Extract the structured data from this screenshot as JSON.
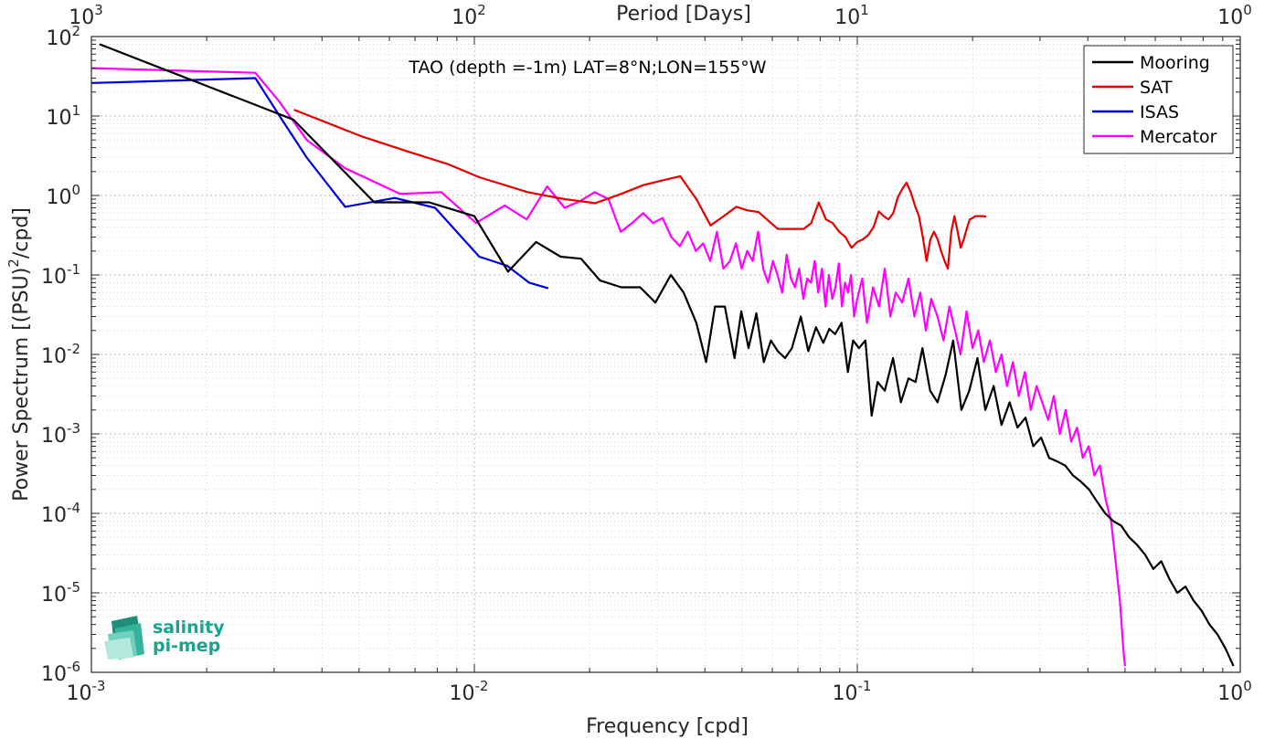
{
  "chart_data": {
    "type": "line",
    "title": "TAO (depth =-1m) LAT=8°N;LON=155°W",
    "xlabel": "Frequency [cpd]",
    "ylabel_main": "Power Spectrum [(PSU)",
    "ylabel_sup": "2",
    "ylabel_tail": "/cpd]",
    "top_xlabel": "Period [Days]",
    "x_scale": "log",
    "y_scale": "log",
    "xlim": [
      0.001,
      1
    ],
    "ylim": [
      1e-06,
      100
    ],
    "grid": true,
    "legend_position": "top-right",
    "x_ticks": [
      {
        "value": 0.001,
        "base": "10",
        "exp": "-3"
      },
      {
        "value": 0.01,
        "base": "10",
        "exp": "-2"
      },
      {
        "value": 0.1,
        "base": "10",
        "exp": "-1"
      },
      {
        "value": 1,
        "base": "10",
        "exp": "0"
      }
    ],
    "top_ticks": [
      {
        "value": 0.001,
        "base": "10",
        "exp": "3"
      },
      {
        "value": 0.01,
        "base": "10",
        "exp": "2"
      },
      {
        "value": 0.1,
        "base": "10",
        "exp": "1"
      },
      {
        "value": 1,
        "base": "10",
        "exp": "0"
      }
    ],
    "y_ticks": [
      {
        "value": 100,
        "base": "10",
        "exp": "2"
      },
      {
        "value": 10,
        "base": "10",
        "exp": "1"
      },
      {
        "value": 1,
        "base": "10",
        "exp": "0"
      },
      {
        "value": 0.1,
        "base": "10",
        "exp": "-1"
      },
      {
        "value": 0.01,
        "base": "10",
        "exp": "-2"
      },
      {
        "value": 0.001,
        "base": "10",
        "exp": "-3"
      },
      {
        "value": 0.0001,
        "base": "10",
        "exp": "-4"
      },
      {
        "value": 1e-05,
        "base": "10",
        "exp": "-5"
      },
      {
        "value": 1e-06,
        "base": "10",
        "exp": "-6"
      }
    ],
    "series": [
      {
        "name": "Mooring",
        "color": "#000000",
        "x": [
          0.00105,
          0.00337,
          0.00548,
          0.00762,
          0.01,
          0.01225,
          0.0145,
          0.0168,
          0.019,
          0.0213,
          0.0242,
          0.0271,
          0.0297,
          0.0326,
          0.0352,
          0.038,
          0.0403,
          0.0425,
          0.0451,
          0.0478,
          0.0498,
          0.052,
          0.0545,
          0.057,
          0.0595,
          0.062,
          0.0648,
          0.0675,
          0.0712,
          0.0745,
          0.078,
          0.0815,
          0.0845,
          0.0875,
          0.091,
          0.0945,
          0.0975,
          0.101,
          0.105,
          0.109,
          0.113,
          0.118,
          0.124,
          0.13,
          0.136,
          0.142,
          0.148,
          0.155,
          0.162,
          0.17,
          0.178,
          0.187,
          0.196,
          0.206,
          0.216,
          0.227,
          0.238,
          0.25,
          0.262,
          0.275,
          0.288,
          0.302,
          0.317,
          0.333,
          0.349,
          0.366,
          0.384,
          0.403,
          0.423,
          0.444,
          0.466,
          0.489,
          0.513,
          0.538,
          0.565,
          0.593,
          0.622,
          0.653,
          0.685,
          0.719,
          0.755,
          0.792,
          0.831,
          0.872,
          0.915,
          0.96
        ],
        "y": [
          80,
          9,
          0.82,
          0.82,
          0.55,
          0.11,
          0.26,
          0.17,
          0.16,
          0.085,
          0.07,
          0.07,
          0.045,
          0.1,
          0.06,
          0.025,
          0.008,
          0.04,
          0.04,
          0.009,
          0.035,
          0.012,
          0.033,
          0.008,
          0.015,
          0.011,
          0.009,
          0.012,
          0.03,
          0.011,
          0.022,
          0.014,
          0.021,
          0.018,
          0.025,
          0.006,
          0.015,
          0.012,
          0.015,
          0.0017,
          0.0045,
          0.0035,
          0.009,
          0.0025,
          0.005,
          0.0045,
          0.012,
          0.0035,
          0.0025,
          0.0055,
          0.015,
          0.002,
          0.0035,
          0.009,
          0.002,
          0.004,
          0.0013,
          0.0025,
          0.0012,
          0.0016,
          0.0007,
          0.0009,
          0.0005,
          0.00045,
          0.0004,
          0.0003,
          0.00025,
          0.0002,
          0.00014,
          0.0001,
          8e-05,
          7e-05,
          5e-05,
          4e-05,
          3e-05,
          2e-05,
          2.5e-05,
          1.5e-05,
          1e-05,
          1.2e-05,
          8e-06,
          6e-06,
          4e-06,
          3e-06,
          2e-06,
          1.2e-06
        ]
      },
      {
        "name": "SAT",
        "color": "#e60000",
        "x": [
          0.00338,
          0.0051,
          0.0068,
          0.0085,
          0.0103,
          0.0138,
          0.0172,
          0.0207,
          0.0242,
          0.0276,
          0.031,
          0.0345,
          0.038,
          0.0414,
          0.0448,
          0.0483,
          0.0517,
          0.0552,
          0.0586,
          0.062,
          0.0655,
          0.069,
          0.0724,
          0.0758,
          0.0793,
          0.0828,
          0.0862,
          0.0897,
          0.0931,
          0.0966,
          0.1,
          0.1034,
          0.1069,
          0.1103,
          0.1138,
          0.1172,
          0.1207,
          0.1241,
          0.1276,
          0.131,
          0.1345,
          0.1379,
          0.1414,
          0.1448,
          0.1483,
          0.1517,
          0.1552,
          0.1586,
          0.1621,
          0.1655,
          0.169,
          0.1724,
          0.1759,
          0.1793,
          0.1828,
          0.1862,
          0.1897,
          0.1931,
          0.1966,
          0.2,
          0.2034,
          0.2069,
          0.2103,
          0.2138,
          0.2172
        ],
        "y": [
          12,
          5.5,
          3.5,
          2.5,
          1.7,
          1.1,
          0.9,
          0.8,
          1.05,
          1.35,
          1.55,
          1.75,
          0.9,
          0.42,
          0.55,
          0.72,
          0.65,
          0.62,
          0.48,
          0.38,
          0.38,
          0.38,
          0.38,
          0.45,
          0.82,
          0.5,
          0.45,
          0.35,
          0.3,
          0.22,
          0.26,
          0.28,
          0.32,
          0.4,
          0.63,
          0.55,
          0.5,
          0.6,
          0.95,
          1.2,
          1.45,
          1.1,
          0.75,
          0.55,
          0.3,
          0.15,
          0.28,
          0.35,
          0.28,
          0.2,
          0.15,
          0.12,
          0.35,
          0.55,
          0.35,
          0.22,
          0.28,
          0.38,
          0.5,
          0.52,
          0.55,
          0.55,
          0.55,
          0.55,
          0.54
        ]
      },
      {
        "name": "ISAS",
        "color": "#0000e6",
        "x": [
          0.001,
          0.00268,
          0.0031,
          0.00365,
          0.0046,
          0.0062,
          0.0079,
          0.0103,
          0.0122,
          0.0139,
          0.0156
        ],
        "y": [
          26,
          30,
          10,
          3,
          0.72,
          0.93,
          0.7,
          0.17,
          0.13,
          0.08,
          0.068
        ]
      },
      {
        "name": "Mercator",
        "color": "#ff00ff",
        "x": [
          0.001,
          0.00268,
          0.0031,
          0.00365,
          0.0046,
          0.0064,
          0.0082,
          0.0101,
          0.012,
          0.0137,
          0.0155,
          0.0172,
          0.0189,
          0.0206,
          0.0224,
          0.0241,
          0.0258,
          0.0276,
          0.0293,
          0.031,
          0.0327,
          0.0344,
          0.0361,
          0.0379,
          0.0396,
          0.0413,
          0.043,
          0.0447,
          0.0465,
          0.0482,
          0.0499,
          0.0516,
          0.0533,
          0.0551,
          0.0568,
          0.0585,
          0.0602,
          0.0619,
          0.0637,
          0.0654,
          0.0671,
          0.0688,
          0.0705,
          0.0723,
          0.074,
          0.0757,
          0.0774,
          0.0791,
          0.0809,
          0.0826,
          0.0843,
          0.086,
          0.0877,
          0.0895,
          0.0912,
          0.0929,
          0.0946,
          0.0963,
          0.0981,
          0.1,
          0.103,
          0.106,
          0.11,
          0.114,
          0.118,
          0.122,
          0.126,
          0.131,
          0.136,
          0.141,
          0.146,
          0.151,
          0.156,
          0.162,
          0.168,
          0.174,
          0.18,
          0.186,
          0.193,
          0.2,
          0.207,
          0.214,
          0.222,
          0.23,
          0.238,
          0.246,
          0.255,
          0.264,
          0.274,
          0.284,
          0.294,
          0.304,
          0.315,
          0.326,
          0.338,
          0.35,
          0.362,
          0.375,
          0.388,
          0.402,
          0.416,
          0.43,
          0.445,
          0.46,
          0.475,
          0.485,
          0.49,
          0.495,
          0.5
        ],
        "y": [
          40,
          35,
          15,
          5,
          2.2,
          1.05,
          1.1,
          0.45,
          0.75,
          0.5,
          1.3,
          0.7,
          0.85,
          1.1,
          0.9,
          0.35,
          0.45,
          0.6,
          0.45,
          0.52,
          0.3,
          0.23,
          0.35,
          0.2,
          0.25,
          0.15,
          0.35,
          0.12,
          0.15,
          0.25,
          0.12,
          0.2,
          0.15,
          0.35,
          0.12,
          0.08,
          0.15,
          0.1,
          0.06,
          0.18,
          0.09,
          0.07,
          0.12,
          0.05,
          0.09,
          0.08,
          0.15,
          0.06,
          0.12,
          0.04,
          0.1,
          0.05,
          0.07,
          0.14,
          0.04,
          0.08,
          0.06,
          0.1,
          0.03,
          0.05,
          0.09,
          0.025,
          0.07,
          0.04,
          0.12,
          0.03,
          0.06,
          0.045,
          0.09,
          0.03,
          0.06,
          0.02,
          0.05,
          0.03,
          0.015,
          0.04,
          0.02,
          0.01,
          0.035,
          0.012,
          0.02,
          0.008,
          0.015,
          0.006,
          0.01,
          0.004,
          0.008,
          0.003,
          0.006,
          0.002,
          0.004,
          0.0025,
          0.0015,
          0.003,
          0.001,
          0.002,
          0.0008,
          0.0012,
          0.0005,
          0.0007,
          0.0003,
          0.0004,
          0.00015,
          8e-05,
          2e-05,
          8e-06,
          4e-06,
          2e-06,
          1.2e-06
        ]
      }
    ]
  },
  "logo": {
    "line1": "salinity",
    "line2": "pi-mep"
  }
}
